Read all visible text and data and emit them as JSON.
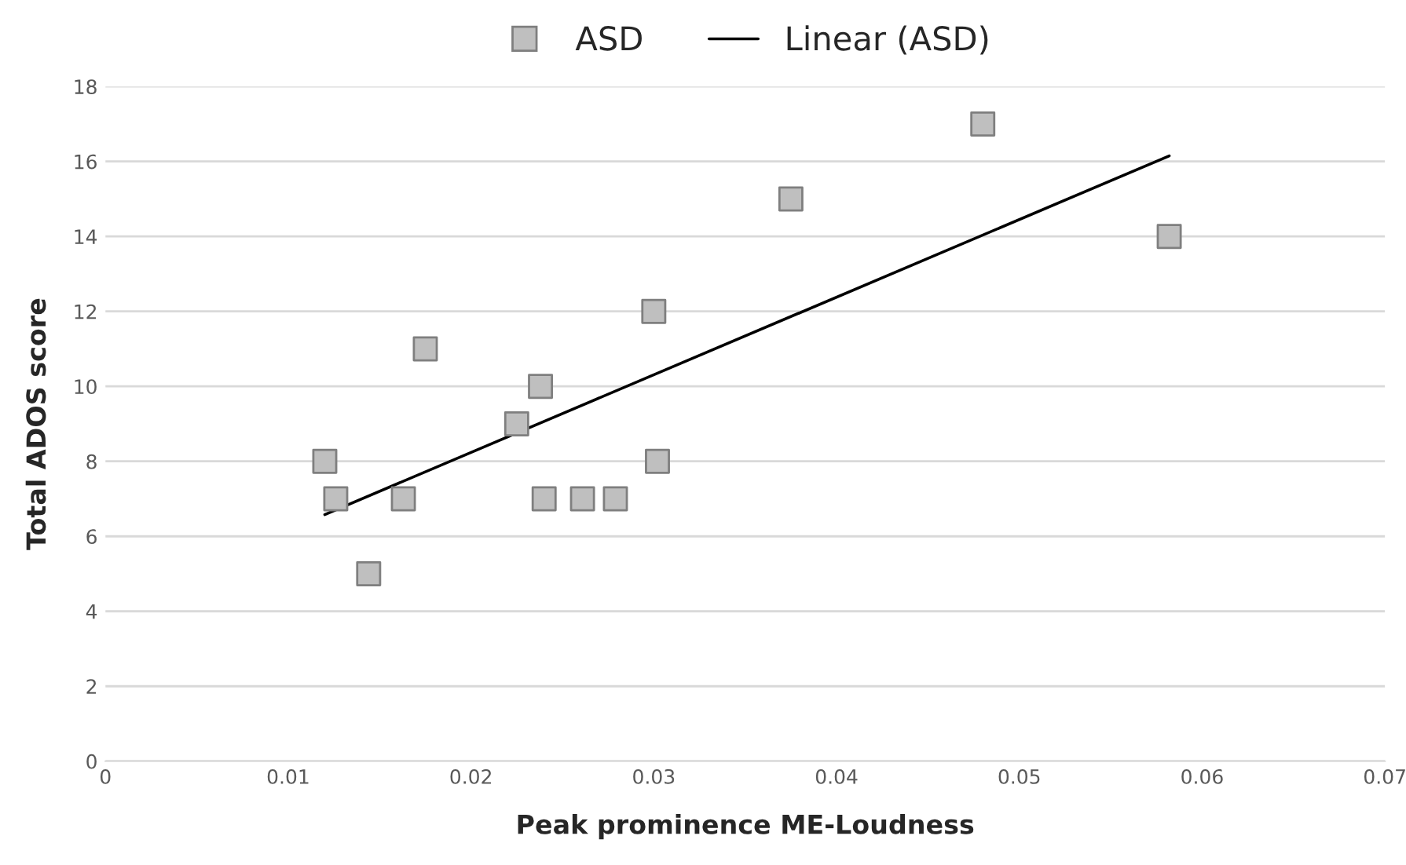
{
  "chart_data": {
    "type": "scatter",
    "xlabel": "Peak prominence ME-Loudness",
    "ylabel": "Total ADOS score",
    "xlim": [
      0,
      0.07
    ],
    "xticks": [
      0,
      0.01,
      0.02,
      0.03,
      0.04,
      0.05,
      0.06,
      0.07
    ],
    "ylim": [
      0,
      18
    ],
    "yticks": [
      0,
      2,
      4,
      6,
      8,
      10,
      12,
      14,
      16,
      18
    ],
    "grid": "y",
    "legend": "top",
    "series": [
      {
        "name": "ASD",
        "marker": "square",
        "color": "#bfbfbf",
        "x": [
          0.012,
          0.0126,
          0.0144,
          0.0163,
          0.0175,
          0.0225,
          0.0238,
          0.024,
          0.0261,
          0.0279,
          0.03,
          0.0302,
          0.0375,
          0.048,
          0.0582
        ],
        "values": [
          8,
          7,
          5,
          7,
          11,
          9,
          10,
          7,
          7,
          7,
          12,
          8,
          15,
          17,
          14
        ]
      },
      {
        "name": "Linear (ASD)",
        "type": "line",
        "marker": "none",
        "color": "#000000",
        "x": [
          0.012,
          0.0582
        ],
        "values": [
          6.58,
          16.15
        ]
      }
    ]
  }
}
